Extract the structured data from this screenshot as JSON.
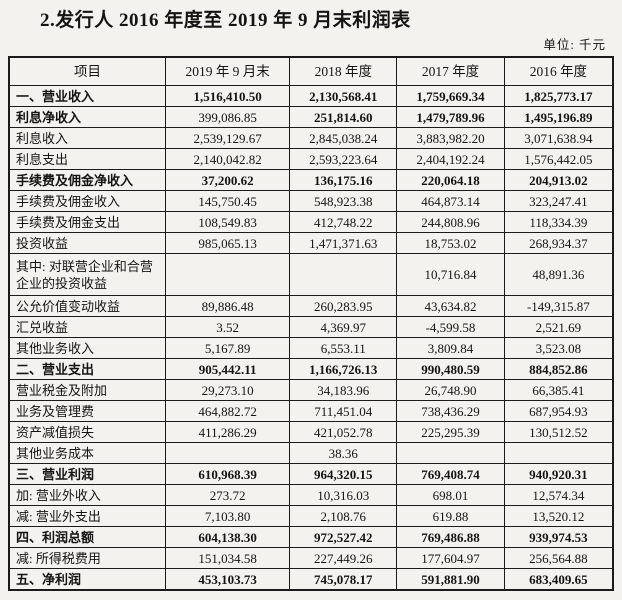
{
  "title": "2.发行人 2016 年度至 2019 年 9 月末利润表",
  "unit_label": "单位: 千元",
  "table": {
    "headers": [
      "项目",
      "2019 年 9 月末",
      "2018 年度",
      "2017 年度",
      "2016 年度"
    ],
    "rows": [
      {
        "label": "一、营业收入",
        "values": [
          "1,516,410.50",
          "2,130,568.41",
          "1,759,669.34",
          "1,825,773.17"
        ],
        "bold": true
      },
      {
        "label": "利息净收入",
        "values": [
          "399,086.85",
          "251,814.60",
          "1,479,789.96",
          "1,495,196.89"
        ],
        "bold": true,
        "normal_value_indices": [
          0
        ]
      },
      {
        "label": "利息收入",
        "values": [
          "2,539,129.67",
          "2,845,038.24",
          "3,883,982.20",
          "3,071,638.94"
        ],
        "bold": false
      },
      {
        "label": "利息支出",
        "values": [
          "2,140,042.82",
          "2,593,223.64",
          "2,404,192.24",
          "1,576,442.05"
        ],
        "bold": false
      },
      {
        "label": "手续费及佣金净收入",
        "values": [
          "37,200.62",
          "136,175.16",
          "220,064.18",
          "204,913.02"
        ],
        "bold": true
      },
      {
        "label": "手续费及佣金收入",
        "values": [
          "145,750.45",
          "548,923.38",
          "464,873.14",
          "323,247.41"
        ],
        "bold": false
      },
      {
        "label": "手续费及佣金支出",
        "values": [
          "108,549.83",
          "412,748.22",
          "244,808.96",
          "118,334.39"
        ],
        "bold": false
      },
      {
        "label": "投资收益",
        "values": [
          "985,065.13",
          "1,471,371.63",
          "18,753.02",
          "268,934.37"
        ],
        "bold": false
      },
      {
        "label": "其中: 对联营企业和合营企业的投资收益",
        "values": [
          "",
          "",
          "10,716.84",
          "48,891.36"
        ],
        "bold": false,
        "tall": true
      },
      {
        "label": "公允价值变动收益",
        "values": [
          "89,886.48",
          "260,283.95",
          "43,634.82",
          "-149,315.87"
        ],
        "bold": false
      },
      {
        "label": "汇兑收益",
        "values": [
          "3.52",
          "4,369.97",
          "-4,599.58",
          "2,521.69"
        ],
        "bold": false
      },
      {
        "label": "其他业务收入",
        "values": [
          "5,167.89",
          "6,553.11",
          "3,809.84",
          "3,523.08"
        ],
        "bold": false
      },
      {
        "label": "二、营业支出",
        "values": [
          "905,442.11",
          "1,166,726.13",
          "990,480.59",
          "884,852.86"
        ],
        "bold": true
      },
      {
        "label": "营业税金及附加",
        "values": [
          "29,273.10",
          "34,183.96",
          "26,748.90",
          "66,385.41"
        ],
        "bold": false
      },
      {
        "label": "业务及管理费",
        "values": [
          "464,882.72",
          "711,451.04",
          "738,436.29",
          "687,954.93"
        ],
        "bold": false
      },
      {
        "label": "资产减值损失",
        "values": [
          "411,286.29",
          "421,052.78",
          "225,295.39",
          "130,512.52"
        ],
        "bold": false
      },
      {
        "label": "其他业务成本",
        "values": [
          "",
          "38.36",
          "",
          ""
        ],
        "bold": false
      },
      {
        "label": "三、营业利润",
        "values": [
          "610,968.39",
          "964,320.15",
          "769,408.74",
          "940,920.31"
        ],
        "bold": true
      },
      {
        "label": "加: 营业外收入",
        "values": [
          "273.72",
          "10,316.03",
          "698.01",
          "12,574.34"
        ],
        "bold": false
      },
      {
        "label": "减: 营业外支出",
        "values": [
          "7,103.80",
          "2,108.76",
          "619.88",
          "13,520.12"
        ],
        "bold": false
      },
      {
        "label": "四、利润总额",
        "values": [
          "604,138.30",
          "972,527.42",
          "769,486.88",
          "939,974.53"
        ],
        "bold": true
      },
      {
        "label": "减: 所得税费用",
        "values": [
          "151,034.58",
          "227,449.26",
          "177,604.97",
          "256,564.88"
        ],
        "bold": false
      },
      {
        "label": "五、净利润",
        "values": [
          "453,103.73",
          "745,078.17",
          "591,881.90",
          "683,409.65"
        ],
        "bold": true
      }
    ],
    "column_widths_pct": [
      25.9,
      20.6,
      17.7,
      17.8,
      18.0
    ]
  }
}
